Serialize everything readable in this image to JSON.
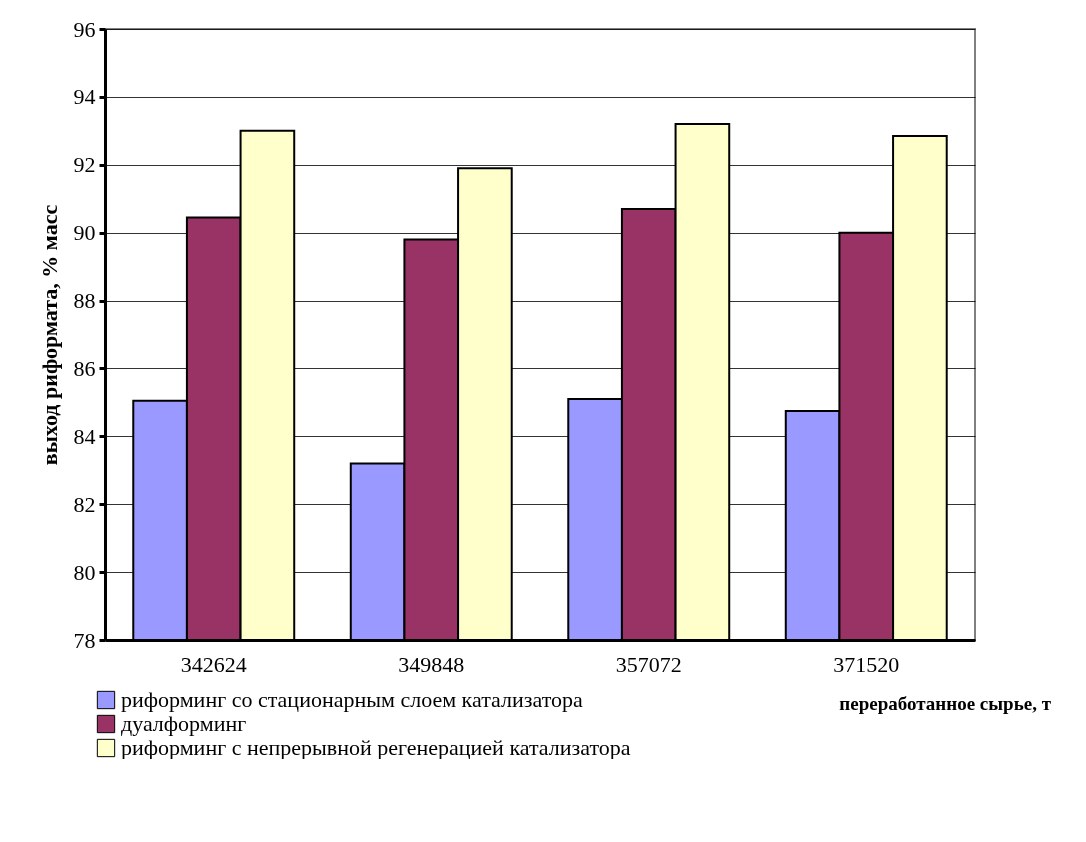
{
  "chart_data": {
    "type": "bar",
    "xlabel": "переработанное сырье, т",
    "ylabel": "выход риформата, % масс",
    "categories": [
      "342624",
      "349848",
      "357072",
      "371520"
    ],
    "series": [
      {
        "name": "риформинг со стационарным слоем катализатора",
        "color": "#9999ff",
        "values": [
          85.05,
          83.2,
          85.1,
          84.75
        ]
      },
      {
        "name": "дуалформинг",
        "color": "#993366",
        "values": [
          90.45,
          89.8,
          90.7,
          90.0
        ]
      },
      {
        "name": "риформинг с непрерывной регенерацией катализатора",
        "color": "#ffffcc",
        "values": [
          93.0,
          91.9,
          93.2,
          92.85
        ]
      }
    ],
    "ylim": [
      78,
      96
    ],
    "yticks": [
      78,
      80,
      82,
      84,
      86,
      88,
      90,
      92,
      94,
      96
    ],
    "grid": "y",
    "legend": "bottom"
  }
}
